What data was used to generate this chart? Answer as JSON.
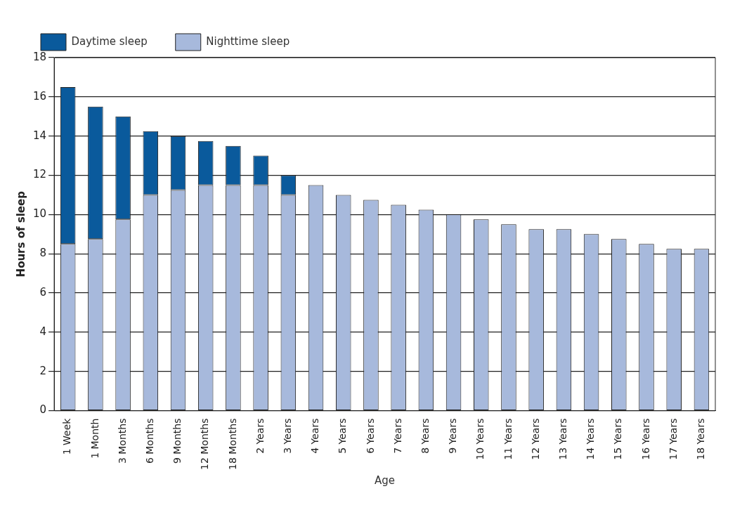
{
  "chart_data": {
    "type": "bar",
    "stacked": true,
    "xlabel": "Age",
    "ylabel": "Hours of sleep",
    "categories": [
      "1 Week",
      "1 Month",
      "3 Months",
      "6 Months",
      "9 Months",
      "12 Months",
      "18 Months",
      "2 Years",
      "3 Years",
      "4 Years",
      "5 Years",
      "6 Years",
      "7 Years",
      "8 Years",
      "9 Years",
      "10 Years",
      "11 Years",
      "12 Years",
      "13 Years",
      "14 Years",
      "15 Years",
      "16 Years",
      "17 Years",
      "18 Years"
    ],
    "series": [
      {
        "name": "Nighttime sleep",
        "color": "#a7b9dc",
        "values": [
          8.5,
          8.75,
          9.75,
          11,
          11.25,
          11.5,
          11.5,
          11.5,
          11,
          11.5,
          11,
          10.75,
          10.5,
          10.25,
          10,
          9.75,
          9.5,
          9.25,
          9.25,
          9,
          8.75,
          8.5,
          8.25,
          8.25
        ]
      },
      {
        "name": "Daytime sleep",
        "color": "#0a5a9c",
        "values": [
          8,
          6.75,
          5.25,
          3.25,
          2.75,
          2.25,
          2,
          1.5,
          1,
          null,
          null,
          null,
          null,
          null,
          null,
          null,
          null,
          null,
          null,
          null,
          null,
          null,
          null,
          null
        ]
      }
    ],
    "ylim": [
      0,
      18
    ],
    "yticks": [
      0,
      2,
      4,
      6,
      8,
      10,
      12,
      14,
      16,
      18
    ],
    "grid": "y",
    "legend": "top left"
  }
}
